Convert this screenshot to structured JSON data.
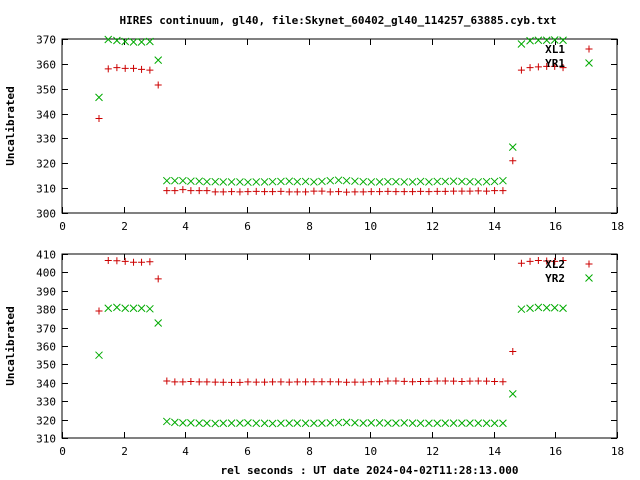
{
  "title": "HIRES continuum, gl40, file:Skynet_60402_gl40_114257_63885.cyb.txt",
  "chart_data": [
    {
      "type": "scatter",
      "title": "HIRES continuum, gl40, file:Skynet_60402_gl40_114257_63885.cyb.txt",
      "xlabel": "",
      "ylabel": "Uncalibrated",
      "xlim": [
        0,
        18
      ],
      "ylim": [
        300,
        370
      ],
      "xticks": [
        0,
        2,
        4,
        6,
        8,
        10,
        12,
        14,
        16,
        18
      ],
      "yticks": [
        300,
        310,
        320,
        330,
        340,
        350,
        360,
        370
      ],
      "legend_position": "top-right",
      "grid": false,
      "series": [
        {
          "name": "XL1",
          "marker": "plus",
          "color": "#cc0000",
          "points": [
            [
              1.2,
              338
            ],
            [
              1.5,
              358
            ],
            [
              1.78,
              358.5
            ],
            [
              2.05,
              358.2
            ],
            [
              2.32,
              358.2
            ],
            [
              2.58,
              357.8
            ],
            [
              2.85,
              357.5
            ],
            [
              3.12,
              351.5
            ],
            [
              3.4,
              309
            ],
            [
              3.66,
              309
            ],
            [
              3.92,
              309.4
            ],
            [
              4.18,
              309
            ],
            [
              4.45,
              309
            ],
            [
              4.7,
              309
            ],
            [
              4.97,
              308.5
            ],
            [
              5.23,
              308.5
            ],
            [
              5.5,
              308.6
            ],
            [
              5.77,
              308.5
            ],
            [
              6.03,
              308.6
            ],
            [
              6.3,
              308.7
            ],
            [
              6.57,
              308.6
            ],
            [
              6.83,
              308.6
            ],
            [
              7.1,
              308.7
            ],
            [
              7.37,
              308.5
            ],
            [
              7.63,
              308.5
            ],
            [
              7.9,
              308.5
            ],
            [
              8.17,
              308.8
            ],
            [
              8.43,
              308.8
            ],
            [
              8.7,
              308.5
            ],
            [
              8.97,
              308.6
            ],
            [
              9.23,
              308.4
            ],
            [
              9.5,
              308.5
            ],
            [
              9.77,
              308.5
            ],
            [
              10.03,
              308.6
            ],
            [
              10.3,
              308.6
            ],
            [
              10.57,
              308.7
            ],
            [
              10.83,
              308.6
            ],
            [
              11.1,
              308.6
            ],
            [
              11.37,
              308.6
            ],
            [
              11.63,
              308.7
            ],
            [
              11.9,
              308.6
            ],
            [
              12.17,
              308.7
            ],
            [
              12.43,
              308.7
            ],
            [
              12.7,
              308.8
            ],
            [
              12.97,
              308.8
            ],
            [
              13.23,
              308.8
            ],
            [
              13.5,
              308.9
            ],
            [
              13.77,
              308.8
            ],
            [
              14.03,
              309
            ],
            [
              14.3,
              309
            ],
            [
              14.62,
              321
            ],
            [
              14.9,
              357.5
            ],
            [
              15.18,
              358.5
            ],
            [
              15.45,
              358.8
            ],
            [
              15.72,
              359
            ],
            [
              15.98,
              359
            ],
            [
              16.25,
              358.5
            ]
          ]
        },
        {
          "name": "YR1",
          "marker": "cross",
          "color": "#00aa00",
          "points": [
            [
              1.2,
              346.5
            ],
            [
              1.5,
              369.8
            ],
            [
              1.78,
              369.4
            ],
            [
              2.05,
              369
            ],
            [
              2.32,
              368.8
            ],
            [
              2.58,
              368.8
            ],
            [
              2.85,
              369
            ],
            [
              3.12,
              361.5
            ],
            [
              3.4,
              313
            ],
            [
              3.66,
              313
            ],
            [
              3.92,
              313
            ],
            [
              4.18,
              312.8
            ],
            [
              4.45,
              312.8
            ],
            [
              4.7,
              312.6
            ],
            [
              4.97,
              312.6
            ],
            [
              5.23,
              312.5
            ],
            [
              5.5,
              312.5
            ],
            [
              5.77,
              312.5
            ],
            [
              6.03,
              312.4
            ],
            [
              6.3,
              312.5
            ],
            [
              6.57,
              312.5
            ],
            [
              6.83,
              312.6
            ],
            [
              7.1,
              312.7
            ],
            [
              7.37,
              312.8
            ],
            [
              7.63,
              312.6
            ],
            [
              7.9,
              312.7
            ],
            [
              8.17,
              312.5
            ],
            [
              8.43,
              312.7
            ],
            [
              8.7,
              313
            ],
            [
              8.97,
              313.2
            ],
            [
              9.23,
              313
            ],
            [
              9.5,
              312.8
            ],
            [
              9.77,
              312.6
            ],
            [
              10.03,
              312.5
            ],
            [
              10.3,
              312.5
            ],
            [
              10.57,
              312.6
            ],
            [
              10.83,
              312.6
            ],
            [
              11.1,
              312.5
            ],
            [
              11.37,
              312.5
            ],
            [
              11.63,
              312.7
            ],
            [
              11.9,
              312.5
            ],
            [
              12.17,
              312.7
            ],
            [
              12.43,
              312.7
            ],
            [
              12.7,
              312.8
            ],
            [
              12.97,
              312.7
            ],
            [
              13.23,
              312.6
            ],
            [
              13.5,
              312.5
            ],
            [
              13.77,
              312.6
            ],
            [
              14.03,
              312.7
            ],
            [
              14.3,
              313
            ],
            [
              14.62,
              326.5
            ],
            [
              14.9,
              368
            ],
            [
              15.18,
              369.3
            ],
            [
              15.45,
              369.5
            ],
            [
              15.72,
              369.5
            ],
            [
              15.98,
              369.6
            ],
            [
              16.25,
              369.5
            ]
          ]
        }
      ]
    },
    {
      "type": "scatter",
      "title": "",
      "xlabel": "rel seconds : UT date 2024-04-02T11:28:13.000",
      "ylabel": "Uncalibrated",
      "xlim": [
        0,
        18
      ],
      "ylim": [
        310,
        410
      ],
      "xticks": [
        0,
        2,
        4,
        6,
        8,
        10,
        12,
        14,
        16,
        18
      ],
      "yticks": [
        310,
        320,
        330,
        340,
        350,
        360,
        370,
        380,
        390,
        400,
        410
      ],
      "legend_position": "top-right",
      "grid": false,
      "series": [
        {
          "name": "XL2",
          "marker": "plus",
          "color": "#cc0000",
          "points": [
            [
              1.2,
              379
            ],
            [
              1.5,
              406.5
            ],
            [
              1.78,
              406.3
            ],
            [
              2.05,
              406
            ],
            [
              2.32,
              405.5
            ],
            [
              2.58,
              405.5
            ],
            [
              2.85,
              405.8
            ],
            [
              3.12,
              396.5
            ],
            [
              3.4,
              341
            ],
            [
              3.66,
              340.5
            ],
            [
              3.92,
              340.5
            ],
            [
              4.18,
              340.7
            ],
            [
              4.45,
              340.5
            ],
            [
              4.7,
              340.5
            ],
            [
              4.97,
              340.4
            ],
            [
              5.23,
              340.3
            ],
            [
              5.5,
              340.2
            ],
            [
              5.77,
              340.2
            ],
            [
              6.03,
              340.5
            ],
            [
              6.3,
              340.4
            ],
            [
              6.57,
              340.4
            ],
            [
              6.83,
              340.5
            ],
            [
              7.1,
              340.5
            ],
            [
              7.37,
              340.4
            ],
            [
              7.63,
              340.5
            ],
            [
              7.9,
              340.5
            ],
            [
              8.17,
              340.6
            ],
            [
              8.43,
              340.6
            ],
            [
              8.7,
              340.6
            ],
            [
              8.97,
              340.5
            ],
            [
              9.23,
              340.3
            ],
            [
              9.5,
              340.4
            ],
            [
              9.77,
              340.4
            ],
            [
              10.03,
              340.6
            ],
            [
              10.3,
              340.6
            ],
            [
              10.57,
              341
            ],
            [
              10.83,
              341
            ],
            [
              11.1,
              340.8
            ],
            [
              11.37,
              340.6
            ],
            [
              11.63,
              340.7
            ],
            [
              11.9,
              340.8
            ],
            [
              12.17,
              341
            ],
            [
              12.43,
              341
            ],
            [
              12.7,
              340.9
            ],
            [
              12.97,
              340.7
            ],
            [
              13.23,
              340.9
            ],
            [
              13.5,
              341
            ],
            [
              13.77,
              340.9
            ],
            [
              14.03,
              340.7
            ],
            [
              14.3,
              340.6
            ],
            [
              14.62,
              357
            ],
            [
              14.9,
              405
            ],
            [
              15.18,
              406
            ],
            [
              15.45,
              406.5
            ],
            [
              15.72,
              406.2
            ],
            [
              15.98,
              406
            ],
            [
              16.25,
              406.5
            ]
          ]
        },
        {
          "name": "YR2",
          "marker": "cross",
          "color": "#00aa00",
          "points": [
            [
              1.2,
              355
            ],
            [
              1.5,
              380.5
            ],
            [
              1.78,
              381
            ],
            [
              2.05,
              380.5
            ],
            [
              2.32,
              380.5
            ],
            [
              2.58,
              380.5
            ],
            [
              2.85,
              380.2
            ],
            [
              3.12,
              372.5
            ],
            [
              3.4,
              319
            ],
            [
              3.66,
              318.5
            ],
            [
              3.92,
              318.2
            ],
            [
              4.18,
              318.2
            ],
            [
              4.45,
              318.1
            ],
            [
              4.7,
              318
            ],
            [
              4.97,
              317.9
            ],
            [
              5.23,
              318
            ],
            [
              5.5,
              318.1
            ],
            [
              5.77,
              318.1
            ],
            [
              6.03,
              318.2
            ],
            [
              6.3,
              318
            ],
            [
              6.57,
              318
            ],
            [
              6.83,
              317.9
            ],
            [
              7.1,
              318
            ],
            [
              7.37,
              318.1
            ],
            [
              7.63,
              318.1
            ],
            [
              7.9,
              318
            ],
            [
              8.17,
              318
            ],
            [
              8.43,
              318.1
            ],
            [
              8.7,
              318.2
            ],
            [
              8.97,
              318.4
            ],
            [
              9.23,
              318.5
            ],
            [
              9.5,
              318.3
            ],
            [
              9.77,
              318.1
            ],
            [
              10.03,
              318.2
            ],
            [
              10.3,
              318.2
            ],
            [
              10.57,
              318.1
            ],
            [
              10.83,
              318.1
            ],
            [
              11.1,
              318.2
            ],
            [
              11.37,
              318.1
            ],
            [
              11.63,
              318
            ],
            [
              11.9,
              318
            ],
            [
              12.17,
              318
            ],
            [
              12.43,
              318.1
            ],
            [
              12.7,
              318.1
            ],
            [
              12.97,
              318.1
            ],
            [
              13.23,
              318.1
            ],
            [
              13.5,
              318.1
            ],
            [
              13.77,
              318
            ],
            [
              14.03,
              318
            ],
            [
              14.3,
              318
            ],
            [
              14.62,
              334
            ],
            [
              14.9,
              380
            ],
            [
              15.18,
              380.5
            ],
            [
              15.45,
              381
            ],
            [
              15.72,
              380.8
            ],
            [
              15.98,
              380.8
            ],
            [
              16.25,
              380.5
            ]
          ]
        }
      ]
    }
  ]
}
